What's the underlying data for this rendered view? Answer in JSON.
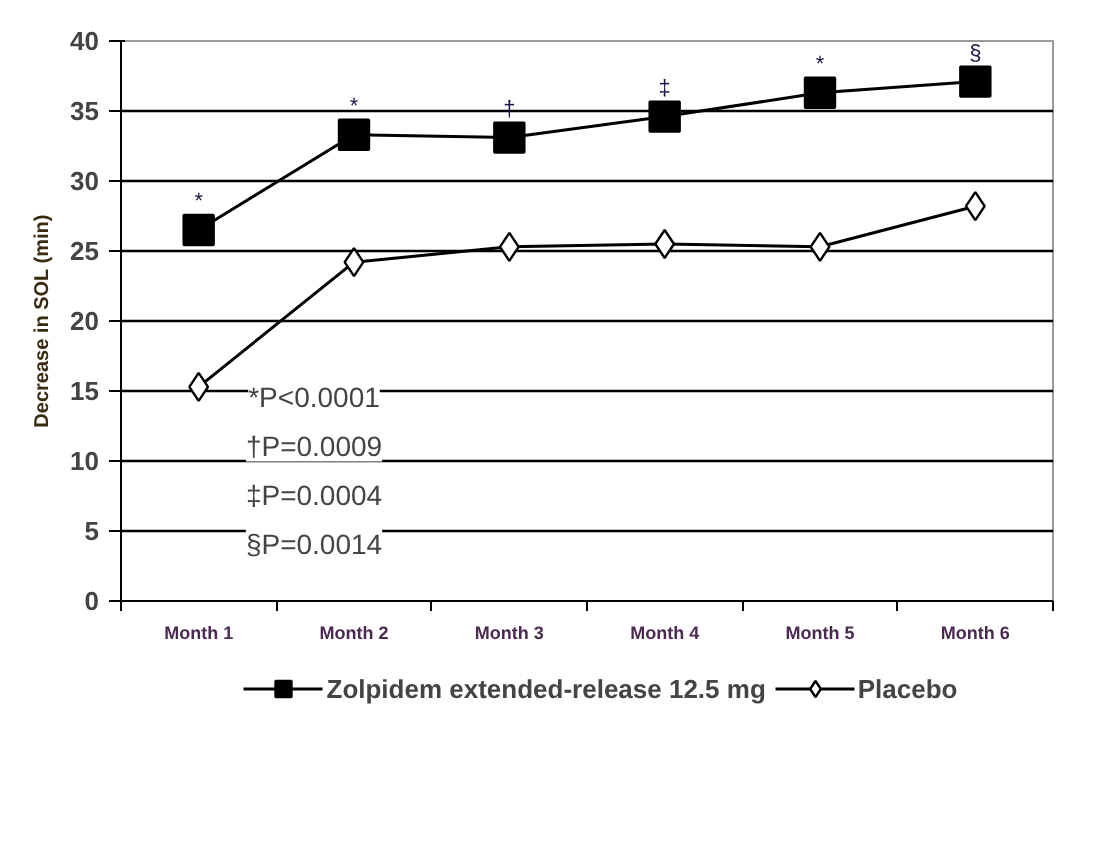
{
  "chart_data": {
    "type": "line",
    "ylabel": "Decrease in SOL (min)",
    "categories": [
      "Month 1",
      "Month 2",
      "Month 3",
      "Month 4",
      "Month 5",
      "Month 6"
    ],
    "series": [
      {
        "name": "Zolpidem extended-release 12.5 mg",
        "color": "#000000",
        "marker": "square",
        "values": [
          26.5,
          33.3,
          33.1,
          34.6,
          36.3,
          37.1
        ]
      },
      {
        "name": "Placebo",
        "color": "#000000",
        "marker": "diamond",
        "values": [
          15.3,
          24.2,
          25.3,
          25.5,
          25.3,
          28.2
        ]
      }
    ],
    "ylim": [
      0,
      40
    ],
    "yticks": [
      0,
      5,
      10,
      15,
      20,
      25,
      30,
      35,
      40
    ],
    "grid": "y",
    "legend": "bottom",
    "line_style": "solid",
    "annotations": [
      "*",
      "*",
      "†",
      "‡",
      "*",
      "§",
      "*P<0.0001",
      "†P=0.0009",
      "‡P=0.0004",
      "§P=0.0014"
    ]
  }
}
